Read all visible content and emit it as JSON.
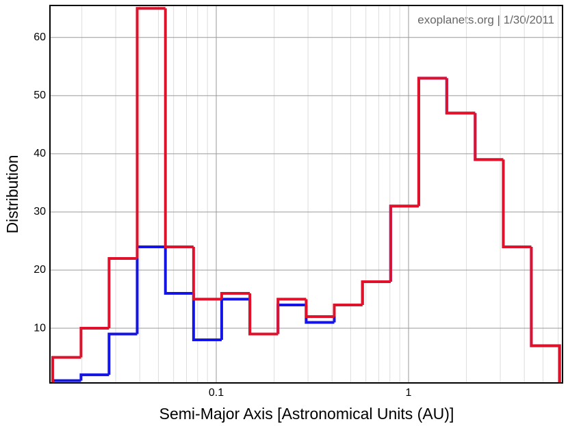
{
  "chart_data": {
    "type": "histogram",
    "annotation": "exoplanets.org | 1/30/2011",
    "xlabel": "Semi-Major Axis [Astronomical Units (AU)]",
    "ylabel": "Distribution",
    "xscale": "log",
    "bins": [
      0.0141,
      0.0198,
      0.0277,
      0.0388,
      0.0544,
      0.0762,
      0.1067,
      0.1495,
      0.2094,
      0.2934,
      0.411,
      0.576,
      0.807,
      1.13,
      1.58,
      2.22,
      3.11,
      4.35,
      6.1
    ],
    "series": [
      {
        "color": "#1414e6",
        "values": [
          1,
          2,
          9,
          24,
          16,
          8,
          15,
          9,
          14,
          11,
          14,
          18,
          31,
          53,
          47,
          39,
          24,
          7
        ]
      },
      {
        "color": "#e0112b",
        "values": [
          5,
          10,
          22,
          65,
          24,
          15,
          16,
          9,
          15,
          12,
          14,
          18,
          31,
          53,
          47,
          39,
          24,
          7
        ]
      }
    ],
    "xlim": [
      0.01365,
      6.32
    ],
    "ylim": [
      0.6,
      65.5
    ],
    "xticks": [
      0.1,
      1
    ],
    "xminorticks": [
      0.02,
      0.03,
      0.04,
      0.05,
      0.06,
      0.07,
      0.08,
      0.09,
      0.2,
      0.3,
      0.4,
      0.5,
      0.6,
      0.7,
      0.8,
      0.9,
      2,
      3,
      4,
      5,
      6
    ],
    "yticks": [
      10,
      20,
      30,
      40,
      50,
      60
    ],
    "grid": true
  }
}
